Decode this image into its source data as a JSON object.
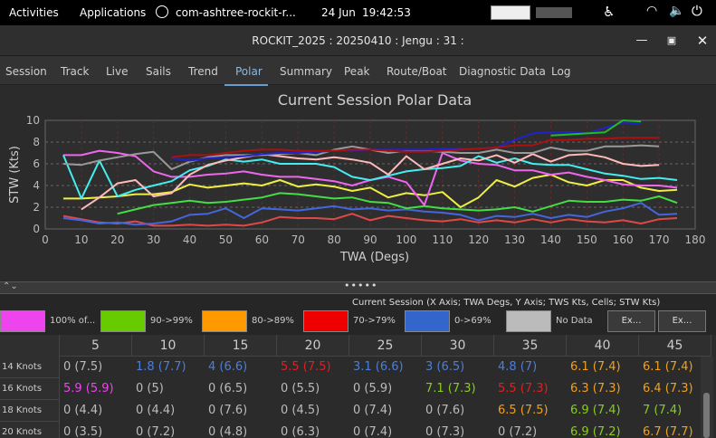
{
  "topbar": {
    "activities": "Activities",
    "applications": "Applications",
    "app_name": "com-ashtree-rockit-r...",
    "date": "24 Jun",
    "time": "19:42:53"
  },
  "window": {
    "title": "ROCKIT_2025 : 20250410 : Jengu : 31 :"
  },
  "tabs": [
    "Session",
    "Track",
    "Live",
    "Sails",
    "Trend",
    "Polar",
    "Summary",
    "Peak",
    "Route/Boat",
    "Diagnostic Data",
    "Log"
  ],
  "active_tab": "Polar",
  "chart_data": {
    "type": "line",
    "title": "Current Session Polar Data",
    "xlabel": "TWA (Degs)",
    "ylabel": "STW (Kts)",
    "xlim": [
      0,
      180
    ],
    "ylim": [
      0,
      10
    ],
    "x_ticks": [
      "0",
      "10",
      "20",
      "30",
      "40",
      "50",
      "60",
      "70",
      "80",
      "90",
      "100",
      "110",
      "120",
      "130",
      "140",
      "150",
      "160",
      "170",
      "180"
    ],
    "y_ticks": [
      "0",
      "2",
      "4",
      "6",
      "8",
      "10"
    ],
    "grid": true,
    "series": [
      {
        "color": "#e04848",
        "x": [
          5,
          10,
          15,
          20,
          25,
          30,
          35,
          40,
          45,
          50,
          55,
          60,
          65,
          70,
          75,
          80,
          85,
          90,
          95,
          100,
          105,
          110,
          115,
          120,
          125,
          130,
          135,
          140,
          145,
          150,
          155,
          160,
          165,
          170,
          175
        ],
        "y": [
          1.2,
          0.9,
          0.6,
          0.5,
          0.7,
          0.3,
          0.3,
          0.4,
          0.3,
          0.4,
          0.3,
          0.6,
          1.1,
          1.0,
          1.0,
          0.9,
          1.4,
          0.8,
          1.2,
          1.0,
          0.8,
          0.7,
          0.9,
          0.6,
          0.8,
          0.6,
          0.9,
          0.6,
          0.9,
          0.7,
          0.6,
          0.8,
          0.5,
          0.9,
          1.0
        ]
      },
      {
        "color": "#4466dd",
        "x": [
          5,
          10,
          15,
          20,
          25,
          30,
          35,
          40,
          45,
          50,
          55,
          60,
          65,
          70,
          75,
          80,
          85,
          90,
          95,
          100,
          105,
          110,
          115,
          120,
          125,
          130,
          135,
          140,
          145,
          150,
          155,
          160,
          165,
          170,
          175
        ],
        "y": [
          1.0,
          0.8,
          0.5,
          0.6,
          0.4,
          0.5,
          0.7,
          1.3,
          1.4,
          1.9,
          1.0,
          1.9,
          1.8,
          1.7,
          1.9,
          2.1,
          1.8,
          1.9,
          1.7,
          1.8,
          1.6,
          1.5,
          1.3,
          0.8,
          1.2,
          1.1,
          1.4,
          1.0,
          1.3,
          1.1,
          1.6,
          1.9,
          2.4,
          1.3,
          1.4
        ]
      },
      {
        "color": "#44dd44",
        "x": [
          20,
          25,
          30,
          35,
          40,
          45,
          50,
          55,
          60,
          65,
          70,
          75,
          80,
          85,
          90,
          95,
          100,
          105,
          110,
          115,
          120,
          125,
          130,
          135,
          140,
          145,
          150,
          155,
          160,
          165,
          170,
          175
        ],
        "y": [
          1.4,
          1.8,
          2.2,
          2.4,
          2.6,
          2.4,
          2.5,
          2.7,
          2.9,
          3.3,
          3.2,
          3.0,
          2.8,
          2.9,
          2.5,
          2.4,
          1.9,
          2.1,
          1.9,
          1.8,
          1.7,
          1.8,
          2.0,
          1.6,
          2.1,
          2.6,
          2.5,
          2.5,
          2.7,
          2.6,
          3.0,
          2.4
        ]
      },
      {
        "color": "#eeee44",
        "x": [
          5,
          10,
          15,
          20,
          25,
          30,
          35,
          40,
          45,
          50,
          55,
          60,
          65,
          70,
          75,
          80,
          85,
          90,
          95,
          100,
          105,
          110,
          115,
          120,
          125,
          130,
          135,
          140,
          145,
          150,
          155,
          160,
          165,
          170,
          175
        ],
        "y": [
          2.8,
          2.8,
          2.9,
          3.0,
          3.2,
          3.2,
          3.4,
          4.1,
          3.8,
          4.0,
          4.2,
          4.0,
          4.5,
          3.9,
          4.1,
          3.9,
          3.5,
          3.8,
          2.9,
          3.3,
          3.1,
          3.4,
          2.0,
          2.9,
          4.5,
          3.9,
          4.7,
          5.0,
          4.3,
          4.0,
          4.5,
          4.5,
          3.8,
          3.5,
          3.6
        ]
      },
      {
        "color": "#ee66ee",
        "x": [
          5,
          10,
          15,
          20,
          25,
          30,
          35,
          40,
          45,
          50,
          55,
          60,
          65,
          70,
          75,
          80,
          85,
          90,
          95,
          100,
          105,
          110,
          115,
          120,
          125,
          130,
          135,
          140,
          145,
          150,
          155,
          160,
          165,
          170,
          175
        ],
        "y": [
          6.8,
          6.8,
          7.2,
          7.0,
          6.7,
          5.3,
          4.8,
          4.8,
          5.0,
          5.1,
          5.3,
          5.0,
          4.8,
          4.8,
          4.6,
          4.4,
          4.0,
          4.5,
          4.8,
          4.3,
          2.2,
          7.0,
          6.3,
          6.0,
          5.9,
          5.4,
          5.4,
          5.0,
          5.2,
          4.8,
          4.5,
          4.1,
          4.0,
          4.0,
          3.8
        ]
      },
      {
        "color": "#44eeee",
        "x": [
          5,
          10,
          15,
          20,
          25,
          30,
          35,
          40,
          45,
          50,
          55,
          60,
          65,
          70,
          75,
          80,
          85,
          90,
          95,
          100,
          105,
          110,
          115,
          120,
          125,
          130,
          135,
          140,
          145,
          150,
          155,
          160,
          165,
          170,
          175
        ],
        "y": [
          6.8,
          2.8,
          6.3,
          3.0,
          3.6,
          4.0,
          4.4,
          5.4,
          5.8,
          6.4,
          6.2,
          6.4,
          6.0,
          6.0,
          6.0,
          5.7,
          4.8,
          4.5,
          4.9,
          5.3,
          5.5,
          5.6,
          5.8,
          6.7,
          6.1,
          6.5,
          6.0,
          5.9,
          5.9,
          5.5,
          5.1,
          4.9,
          4.6,
          4.7,
          4.5
        ]
      },
      {
        "color": "#ffbbbb",
        "x": [
          10,
          15,
          20,
          25,
          30,
          35,
          40,
          45,
          50,
          55,
          60,
          65,
          70,
          75,
          80,
          85,
          90,
          95,
          100,
          105,
          110,
          115,
          120,
          125,
          130,
          135,
          140,
          145,
          150,
          155,
          160,
          165,
          170
        ],
        "y": [
          1.8,
          2.9,
          4.2,
          4.5,
          3.0,
          3.3,
          5.0,
          5.9,
          6.3,
          6.6,
          6.9,
          6.7,
          6.5,
          6.4,
          6.6,
          6.4,
          6.1,
          5.0,
          6.7,
          5.5,
          6.0,
          6.5,
          6.3,
          6.8,
          6.1,
          6.9,
          6.2,
          6.8,
          6.9,
          6.6,
          6.0,
          5.8,
          5.9
        ]
      },
      {
        "color": "#999999",
        "x": [
          5,
          10,
          15,
          20,
          25,
          30,
          35,
          40,
          45,
          50,
          55,
          60,
          65,
          70,
          75,
          80,
          85,
          90,
          95,
          100,
          105,
          110,
          115,
          120,
          125,
          130,
          135,
          140,
          145,
          150,
          155,
          160,
          165,
          170
        ],
        "y": [
          6.0,
          5.9,
          6.3,
          6.6,
          6.9,
          7.1,
          5.5,
          6.2,
          6.6,
          6.8,
          6.8,
          6.8,
          6.9,
          7.0,
          6.8,
          7.3,
          7.6,
          7.3,
          7.0,
          7.2,
          7.2,
          7.1,
          7.0,
          7.0,
          7.3,
          7.0,
          7.0,
          7.5,
          7.2,
          7.2,
          7.6,
          7.6,
          7.7,
          7.6
        ]
      },
      {
        "color": "#2222cc",
        "x": [
          35,
          40,
          45,
          50,
          55,
          60,
          65,
          70,
          75,
          80,
          85,
          90,
          95,
          100,
          105,
          110,
          115,
          120,
          125,
          130,
          135,
          140,
          145,
          150,
          155,
          160,
          165
        ],
        "y": [
          6.5,
          6.3,
          6.5,
          6.6,
          6.7,
          6.9,
          7.0,
          7.0,
          7.1,
          7.2,
          7.2,
          7.3,
          7.3,
          7.3,
          7.3,
          7.4,
          7.4,
          7.4,
          7.5,
          8.2,
          8.8,
          8.9,
          8.9,
          8.8,
          9.3,
          9.8,
          9.7
        ]
      },
      {
        "color": "#aa1111",
        "x": [
          35,
          40,
          45,
          50,
          55,
          60,
          65,
          70,
          75,
          80,
          85,
          90,
          95,
          100,
          105,
          110,
          115,
          120,
          125,
          130,
          135,
          140,
          145,
          150,
          155,
          160,
          165,
          170
        ],
        "y": [
          6.6,
          6.8,
          6.8,
          7.0,
          7.2,
          7.3,
          7.3,
          7.2,
          7.2,
          7.2,
          7.3,
          7.3,
          7.2,
          7.1,
          7.1,
          7.2,
          7.3,
          7.4,
          7.5,
          7.7,
          7.7,
          8.2,
          8.2,
          8.3,
          8.3,
          8.4,
          8.4,
          8.4
        ]
      },
      {
        "color": "#22bb22",
        "x": [
          140,
          145,
          150,
          155,
          160,
          165
        ],
        "y": [
          8.6,
          8.7,
          8.8,
          8.9,
          10.0,
          9.9
        ]
      }
    ]
  },
  "legend": {
    "caption": "Current Session (X Axis; TWA Degs, Y Axis; TWS Kts, Cells; STW Kts)",
    "items": [
      {
        "color": "#ee44ee",
        "label": "100% of..."
      },
      {
        "color": "#66cc00",
        "label": "90->99%"
      },
      {
        "color": "#ff9900",
        "label": "80->89%"
      },
      {
        "color": "#ee0000",
        "label": "70->79%"
      },
      {
        "color": "#3366cc",
        "label": "0->69%"
      },
      {
        "color": "#bbbbbb",
        "label": "No Data"
      }
    ],
    "ex_button_1": "Ex...",
    "ex_button_2": "Ex..."
  },
  "table": {
    "columns": [
      "5",
      "10",
      "15",
      "20",
      "25",
      "30",
      "35",
      "40",
      "45"
    ],
    "rows": [
      {
        "label": "14 Knots",
        "cells": [
          {
            "text": "0 (7.5)",
            "color": "#bbbbbb"
          },
          {
            "text": "1.8 (7.7)",
            "color": "#4d7ed8"
          },
          {
            "text": "4 (6.6)",
            "color": "#4d7ed8"
          },
          {
            "text": "5.5 (7.5)",
            "color": "#e02020"
          },
          {
            "text": "3.1 (6.6)",
            "color": "#4d7ed8"
          },
          {
            "text": "3 (6.5)",
            "color": "#4d7ed8"
          },
          {
            "text": "4.8 (7)",
            "color": "#4d7ed8"
          },
          {
            "text": "6.1 (7.4)",
            "color": "#f0a020"
          },
          {
            "text": "6.1 (7.4)",
            "color": "#f0a020"
          }
        ]
      },
      {
        "label": "16 Knots",
        "cells": [
          {
            "text": "5.9 (5.9)",
            "color": "#ee44ee"
          },
          {
            "text": "0 (5)",
            "color": "#bbbbbb"
          },
          {
            "text": "0 (6.5)",
            "color": "#bbbbbb"
          },
          {
            "text": "0 (5.5)",
            "color": "#bbbbbb"
          },
          {
            "text": "0 (5.9)",
            "color": "#bbbbbb"
          },
          {
            "text": "7.1 (7.3)",
            "color": "#88cc22"
          },
          {
            "text": "5.5 (7.3)",
            "color": "#e02020"
          },
          {
            "text": "6.3 (7.3)",
            "color": "#f0a020"
          },
          {
            "text": "6.4 (7.3)",
            "color": "#f0a020"
          }
        ]
      },
      {
        "label": "18 Knots",
        "cells": [
          {
            "text": "0 (4.4)",
            "color": "#bbbbbb"
          },
          {
            "text": "0 (4.4)",
            "color": "#bbbbbb"
          },
          {
            "text": "0 (7.6)",
            "color": "#bbbbbb"
          },
          {
            "text": "0 (4.5)",
            "color": "#bbbbbb"
          },
          {
            "text": "0 (7.4)",
            "color": "#bbbbbb"
          },
          {
            "text": "0 (7.6)",
            "color": "#bbbbbb"
          },
          {
            "text": "6.5 (7.5)",
            "color": "#f0a020"
          },
          {
            "text": "6.9 (7.4)",
            "color": "#88cc22"
          },
          {
            "text": "7 (7.4)",
            "color": "#88cc22"
          }
        ]
      },
      {
        "label": "20 Knots",
        "cells": [
          {
            "text": "0 (3.5)",
            "color": "#bbbbbb"
          },
          {
            "text": "0 (7.2)",
            "color": "#bbbbbb"
          },
          {
            "text": "0 (4.8)",
            "color": "#bbbbbb"
          },
          {
            "text": "0 (6.3)",
            "color": "#bbbbbb"
          },
          {
            "text": "0 (7.4)",
            "color": "#bbbbbb"
          },
          {
            "text": "0 (7.3)",
            "color": "#bbbbbb"
          },
          {
            "text": "0 (7.2)",
            "color": "#bbbbbb"
          },
          {
            "text": "6.9 (7.2)",
            "color": "#88cc22"
          },
          {
            "text": "6.7 (7.7)",
            "color": "#f0a020"
          }
        ]
      }
    ]
  }
}
